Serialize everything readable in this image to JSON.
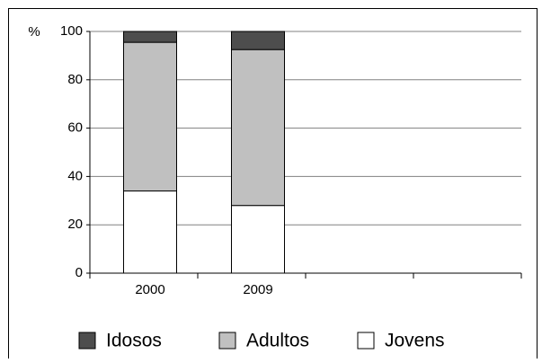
{
  "chart_data": {
    "type": "bar",
    "stacked": true,
    "y_label": "%",
    "categories": [
      "2000",
      "2009",
      null,
      null
    ],
    "series": [
      {
        "name": "Jovens",
        "color": "#ffffff",
        "values": [
          34,
          28,
          null,
          null
        ]
      },
      {
        "name": "Adultos",
        "color": "#c0c0c0",
        "values": [
          61.5,
          64.5,
          null,
          null
        ]
      },
      {
        "name": "Idosos",
        "color": "#4d4d4d",
        "values": [
          4.5,
          7.5,
          null,
          null
        ]
      }
    ],
    "ylim": [
      0,
      100
    ],
    "yticks": [
      0,
      20,
      40,
      60,
      80,
      100
    ],
    "grid": true
  }
}
